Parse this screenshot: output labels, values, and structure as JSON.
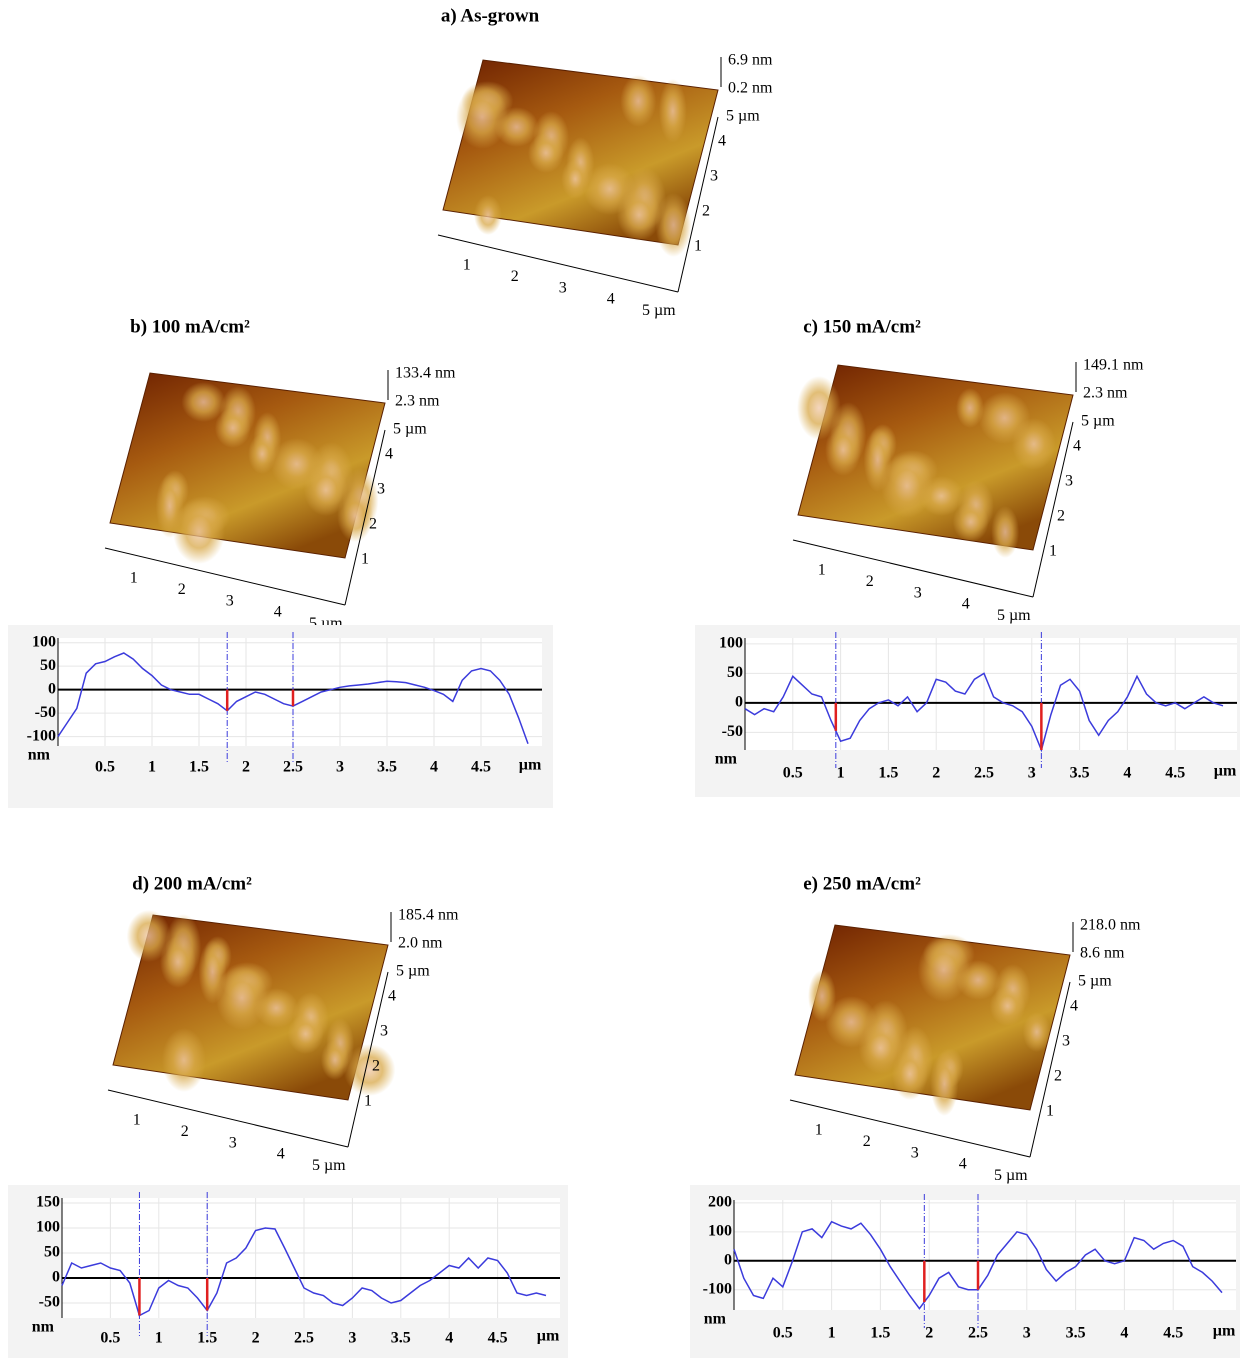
{
  "panels": [
    {
      "title": "a) As-grown",
      "z_labels": [
        "6.9 nm",
        "0.2 nm"
      ],
      "x_ticks": [
        "1",
        "2",
        "3",
        "4",
        "5 µm"
      ],
      "y_ticks": [
        "1",
        "2",
        "3",
        "4",
        "5 µm"
      ]
    },
    {
      "title": "b) 100 mA/cm²",
      "z_labels": [
        "133.4 nm",
        "2.3 nm"
      ],
      "x_ticks": [
        "1",
        "2",
        "3",
        "4",
        "5 µm"
      ],
      "y_ticks": [
        "1",
        "2",
        "3",
        "4",
        "5 µm"
      ]
    },
    {
      "title": "c) 150 mA/cm²",
      "z_labels": [
        "149.1 nm",
        "2.3 nm"
      ],
      "x_ticks": [
        "1",
        "2",
        "3",
        "4",
        "5 µm"
      ],
      "y_ticks": [
        "1",
        "2",
        "3",
        "4",
        "5 µm"
      ]
    },
    {
      "title": "d) 200 mA/cm²",
      "z_labels": [
        "185.4 nm",
        "2.0 nm"
      ],
      "x_ticks": [
        "1",
        "2",
        "3",
        "4",
        "5 µm"
      ],
      "y_ticks": [
        "1",
        "2",
        "3",
        "4",
        "5 µm"
      ]
    },
    {
      "title": "e) 250 mA/cm²",
      "z_labels": [
        "218.0 nm",
        "8.6 nm"
      ],
      "x_ticks": [
        "1",
        "2",
        "3",
        "4",
        "5 µm"
      ],
      "y_ticks": [
        "1",
        "2",
        "3",
        "4",
        "5 µm"
      ]
    }
  ],
  "chart_data": [
    {
      "type": "line",
      "x_label": "µm",
      "y_label": "nm",
      "color": "#3b3bdc",
      "cursor_color": "#e02020",
      "grid": true,
      "x": [
        0,
        0.1,
        0.2,
        0.3,
        0.4,
        0.5,
        0.6,
        0.7,
        0.8,
        0.9,
        1,
        1.1,
        1.2,
        1.3,
        1.4,
        1.5,
        1.6,
        1.7,
        1.8,
        1.9,
        2,
        2.1,
        2.2,
        2.3,
        2.4,
        2.5,
        2.6,
        2.7,
        2.8,
        2.9,
        3,
        3.1,
        3.2,
        3.3,
        3.4,
        3.5,
        3.6,
        3.7,
        3.8,
        3.9,
        4,
        4.1,
        4.2,
        4.3,
        4.4,
        4.5,
        4.6,
        4.7,
        4.8,
        4.9,
        5
      ],
      "values": [
        -100,
        -70,
        -40,
        35,
        55,
        60,
        70,
        78,
        65,
        45,
        30,
        10,
        0,
        -5,
        -10,
        -10,
        -20,
        -30,
        -45,
        -25,
        -15,
        -5,
        -10,
        -20,
        -30,
        -35,
        -25,
        -15,
        -5,
        0,
        5,
        8,
        10,
        12,
        15,
        18,
        17,
        15,
        10,
        5,
        -2,
        -10,
        -25,
        20,
        40,
        45,
        40,
        20,
        -10,
        -60,
        -115
      ],
      "cursors": [
        1.8,
        2.5
      ],
      "xlim": [
        0,
        5
      ],
      "xticks": [
        0.5,
        1,
        1.5,
        2,
        2.5,
        3,
        3.5,
        4,
        4.5
      ],
      "ylim": [
        -120,
        110
      ],
      "yticks": [
        -100,
        -50,
        0,
        50,
        100
      ]
    },
    {
      "type": "line",
      "x_label": "µm",
      "y_label": "nm",
      "color": "#3b3bdc",
      "cursor_color": "#e02020",
      "grid": true,
      "x": [
        0,
        0.1,
        0.2,
        0.3,
        0.4,
        0.5,
        0.6,
        0.7,
        0.8,
        0.9,
        1,
        1.1,
        1.2,
        1.3,
        1.4,
        1.5,
        1.6,
        1.7,
        1.8,
        1.9,
        2,
        2.1,
        2.2,
        2.3,
        2.4,
        2.5,
        2.6,
        2.7,
        2.8,
        2.9,
        3,
        3.1,
        3.2,
        3.3,
        3.4,
        3.5,
        3.6,
        3.7,
        3.8,
        3.9,
        4,
        4.1,
        4.2,
        4.3,
        4.4,
        4.5,
        4.6,
        4.7,
        4.8,
        4.9,
        5
      ],
      "values": [
        -10,
        -20,
        -10,
        -15,
        10,
        45,
        30,
        15,
        10,
        -30,
        -65,
        -60,
        -30,
        -10,
        0,
        5,
        -5,
        10,
        -15,
        0,
        40,
        35,
        20,
        15,
        40,
        50,
        10,
        0,
        -5,
        -15,
        -40,
        -80,
        -20,
        30,
        40,
        20,
        -30,
        -55,
        -30,
        -15,
        10,
        45,
        15,
        0,
        -5,
        0,
        -10,
        0,
        10,
        0,
        -5
      ],
      "cursors": [
        0.95,
        3.1
      ],
      "xlim": [
        0,
        5
      ],
      "xticks": [
        0.5,
        1,
        1.5,
        2,
        2.5,
        3,
        3.5,
        4,
        4.5
      ],
      "ylim": [
        -80,
        110
      ],
      "yticks": [
        -50,
        0,
        50,
        100
      ]
    },
    {
      "type": "line",
      "x_label": "µm",
      "y_label": "nm",
      "color": "#3b3bdc",
      "cursor_color": "#e02020",
      "grid": true,
      "x": [
        0,
        0.1,
        0.2,
        0.3,
        0.4,
        0.5,
        0.6,
        0.7,
        0.8,
        0.9,
        1,
        1.1,
        1.2,
        1.3,
        1.4,
        1.5,
        1.6,
        1.7,
        1.8,
        1.9,
        2,
        2.1,
        2.2,
        2.3,
        2.4,
        2.5,
        2.6,
        2.7,
        2.8,
        2.9,
        3,
        3.1,
        3.2,
        3.3,
        3.4,
        3.5,
        3.6,
        3.7,
        3.8,
        3.9,
        4,
        4.1,
        4.2,
        4.3,
        4.4,
        4.5,
        4.6,
        4.7,
        4.8,
        4.9,
        5
      ],
      "values": [
        -15,
        30,
        20,
        25,
        30,
        20,
        15,
        -10,
        -75,
        -65,
        -20,
        -5,
        -15,
        -20,
        -40,
        -65,
        -30,
        30,
        40,
        60,
        95,
        100,
        98,
        60,
        20,
        -20,
        -30,
        -35,
        -50,
        -55,
        -40,
        -20,
        -25,
        -40,
        -50,
        -45,
        -30,
        -15,
        -5,
        10,
        25,
        20,
        40,
        20,
        40,
        35,
        10,
        -30,
        -35,
        -30,
        -35
      ],
      "cursors": [
        0.8,
        1.5
      ],
      "xlim": [
        0,
        5
      ],
      "xticks": [
        0.5,
        1,
        1.5,
        2,
        2.5,
        3,
        3.5,
        4,
        4.5
      ],
      "ylim": [
        -80,
        160
      ],
      "yticks": [
        -50,
        0,
        50,
        100,
        150
      ]
    },
    {
      "type": "line",
      "x_label": "µm",
      "y_label": "nm",
      "color": "#3b3bdc",
      "cursor_color": "#e02020",
      "grid": true,
      "x": [
        0,
        0.1,
        0.2,
        0.3,
        0.4,
        0.5,
        0.6,
        0.7,
        0.8,
        0.9,
        1,
        1.1,
        1.2,
        1.3,
        1.4,
        1.5,
        1.6,
        1.7,
        1.8,
        1.9,
        2,
        2.1,
        2.2,
        2.3,
        2.4,
        2.5,
        2.6,
        2.7,
        2.8,
        2.9,
        3,
        3.1,
        3.2,
        3.3,
        3.4,
        3.5,
        3.6,
        3.7,
        3.8,
        3.9,
        4,
        4.1,
        4.2,
        4.3,
        4.4,
        4.5,
        4.6,
        4.7,
        4.8,
        4.9,
        5
      ],
      "values": [
        40,
        -60,
        -120,
        -130,
        -60,
        -90,
        0,
        100,
        110,
        80,
        135,
        120,
        110,
        130,
        90,
        40,
        -20,
        -70,
        -120,
        -165,
        -120,
        -60,
        -40,
        -90,
        -100,
        -100,
        -50,
        20,
        60,
        100,
        90,
        40,
        -30,
        -70,
        -40,
        -20,
        20,
        40,
        0,
        -10,
        0,
        80,
        70,
        40,
        60,
        70,
        50,
        -20,
        -40,
        -70,
        -110
      ],
      "cursors": [
        1.95,
        2.5
      ],
      "xlim": [
        0,
        5
      ],
      "xticks": [
        0.5,
        1,
        1.5,
        2,
        2.5,
        3,
        3.5,
        4,
        4.5
      ],
      "ylim": [
        -170,
        210
      ],
      "yticks": [
        -100,
        0,
        100,
        200
      ]
    }
  ]
}
